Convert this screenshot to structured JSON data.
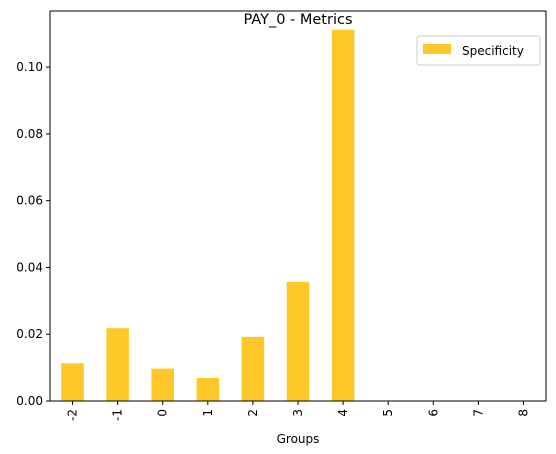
{
  "chart_data": {
    "type": "bar",
    "title": "PAY_0 - Metrics",
    "xlabel": "Groups",
    "ylabel": "",
    "categories": [
      "-2",
      "-1",
      "0",
      "1",
      "2",
      "3",
      "4",
      "5",
      "6",
      "7",
      "8"
    ],
    "series": [
      {
        "name": "Specificity",
        "color": "#ffc727",
        "values": [
          0.0113,
          0.0218,
          0.0097,
          0.0069,
          0.0192,
          0.0357,
          0.1112,
          0,
          0,
          0,
          0
        ]
      }
    ],
    "ylim": [
      0,
      0.1168
    ],
    "yticks": [
      0.0,
      0.02,
      0.04,
      0.06,
      0.08,
      0.1
    ],
    "ytick_labels": [
      "0.00",
      "0.02",
      "0.04",
      "0.06",
      "0.08",
      "0.10"
    ],
    "xtick_rotation": "vertical",
    "legend_position": "top-right",
    "grid": false
  }
}
